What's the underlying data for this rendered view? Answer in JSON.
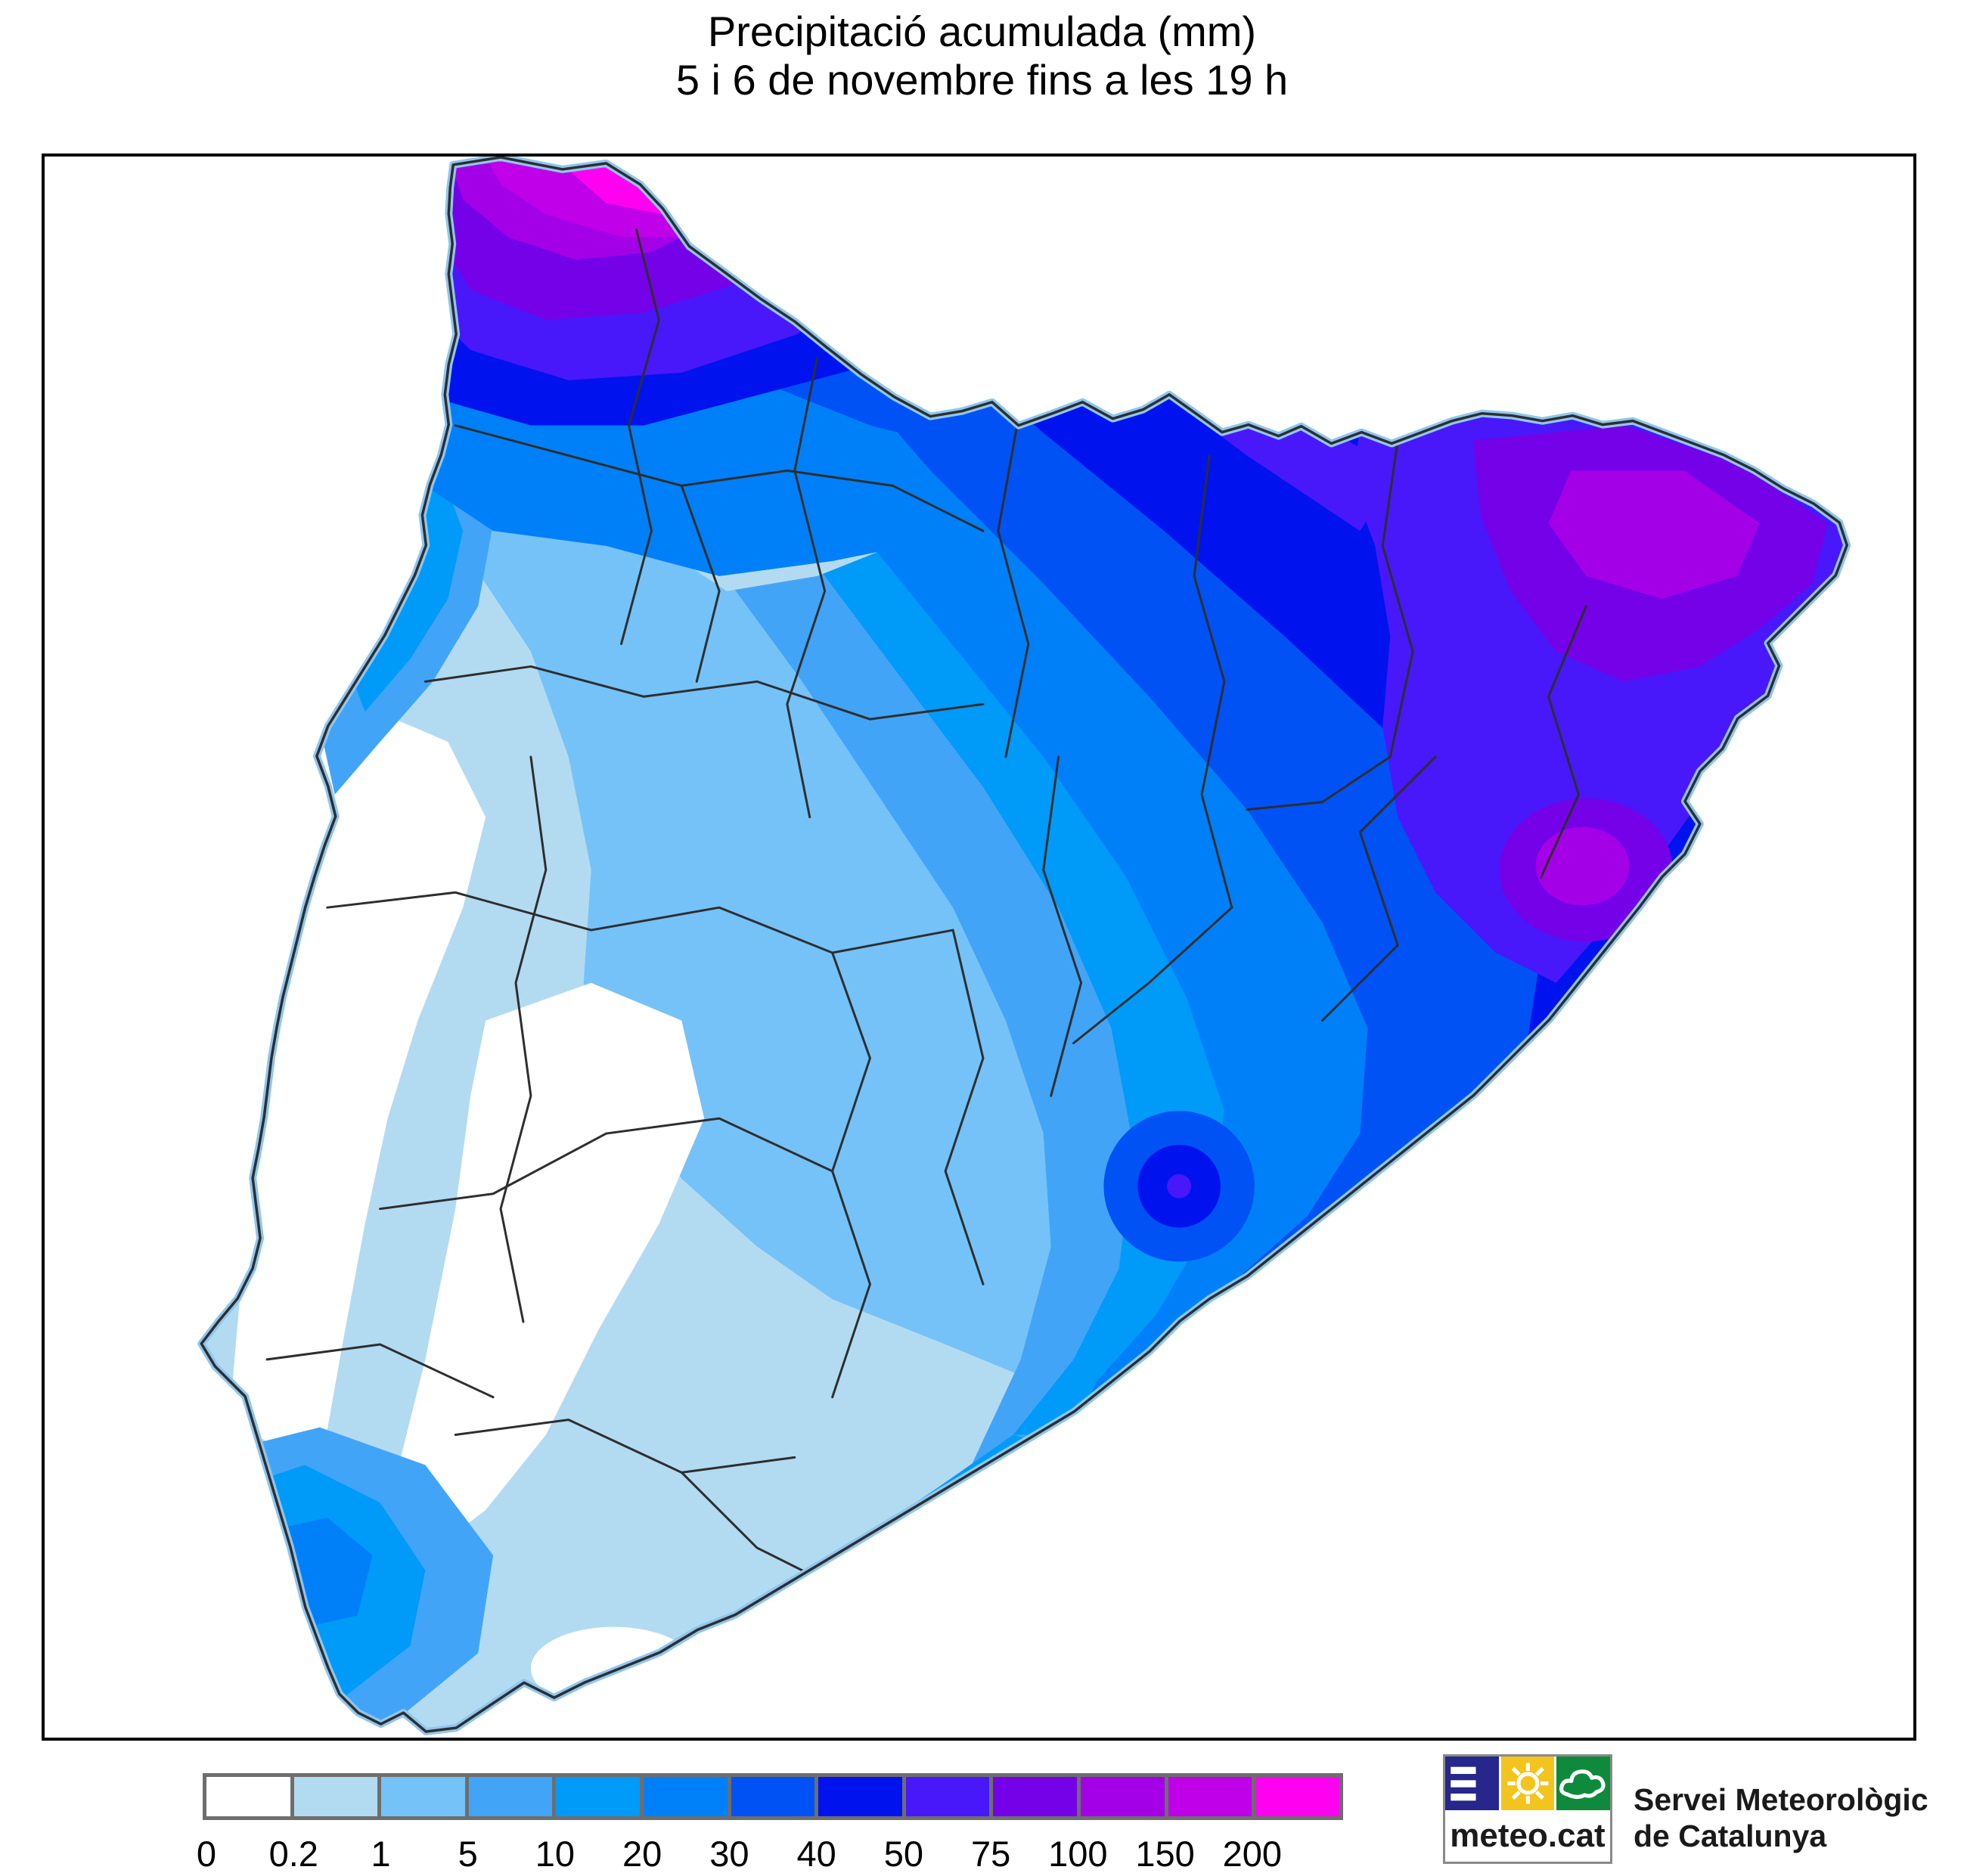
{
  "title": {
    "line1": "Precipitació acumulada (mm)",
    "line2": "5 i 6 de novembre fins a les 19 h"
  },
  "legend": {
    "values": [
      "0",
      "0.2",
      "1",
      "5",
      "10",
      "20",
      "30",
      "40",
      "50",
      "75",
      "100",
      "150",
      "200"
    ],
    "colors": [
      "#FFFFFF",
      "#B2DBF2",
      "#75C2F8",
      "#42A4F6",
      "#009AF8",
      "#0080F8",
      "#0052F5",
      "#0013EE",
      "#4818FA",
      "#7501E8",
      "#A400E8",
      "#BF00E8",
      "#FF00F0"
    ],
    "frame_color": "#6e6e6e"
  },
  "map": {
    "frame_color": "#000000",
    "comarca_line_color": "#2e2e2e",
    "coast_fringe_color": "#8FC6EF",
    "sea_color": "#FFFFFF"
  },
  "logo": {
    "text": "meteo.cat",
    "navy": "#26268C",
    "yellow": "#F2C41D",
    "green": "#0F8A3C"
  },
  "branding": {
    "line1": "Servei Meteorològic",
    "line2": "de Catalunya"
  }
}
